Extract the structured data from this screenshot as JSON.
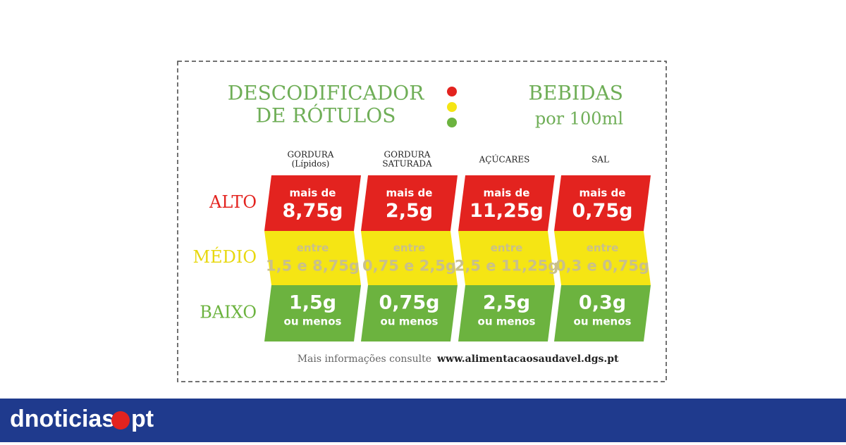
{
  "title": {
    "line1": "DESCODIFICADOR",
    "line2": "DE RÓTULOS"
  },
  "subtitle": {
    "line1": "BEBIDAS",
    "line2": "por 100ml"
  },
  "columns": [
    {
      "lines": [
        "GORDURA",
        "(Lípidos)"
      ]
    },
    {
      "lines": [
        "GORDURA",
        "SATURADA"
      ]
    },
    {
      "lines": [
        "AÇÚCARES"
      ]
    },
    {
      "lines": [
        "SAL"
      ]
    }
  ],
  "rows": [
    {
      "label": "ALTO",
      "cells": [
        {
          "lines": [
            "mais de",
            "8,75g"
          ]
        },
        {
          "lines": [
            "mais de",
            "2,5g"
          ]
        },
        {
          "lines": [
            "mais de",
            "11,25g"
          ]
        },
        {
          "lines": [
            "mais de",
            "0,75g"
          ]
        }
      ]
    },
    {
      "label": "MÉDIO",
      "cells": [
        {
          "lines": [
            "entre",
            "1,5 e 8,75g"
          ]
        },
        {
          "lines": [
            "entre",
            "0,75 e 2,5g"
          ]
        },
        {
          "lines": [
            "entre",
            "2,5 e 11,25g"
          ]
        },
        {
          "lines": [
            "entre",
            "0,3 e 0,75g"
          ]
        }
      ]
    },
    {
      "label": "BAIXO",
      "cells": [
        {
          "lines": [
            "1,5g",
            "ou menos"
          ]
        },
        {
          "lines": [
            "0,75g",
            "ou menos"
          ]
        },
        {
          "lines": [
            "2,5g",
            "ou menos"
          ]
        },
        {
          "lines": [
            "0,3g",
            "ou menos"
          ]
        }
      ]
    }
  ],
  "footer": {
    "text": "Mais informações consulte",
    "link": "www.alimentacaosaudavel.dgs.pt"
  },
  "brand": {
    "name": "dnoticias",
    "suffix": "pt"
  }
}
